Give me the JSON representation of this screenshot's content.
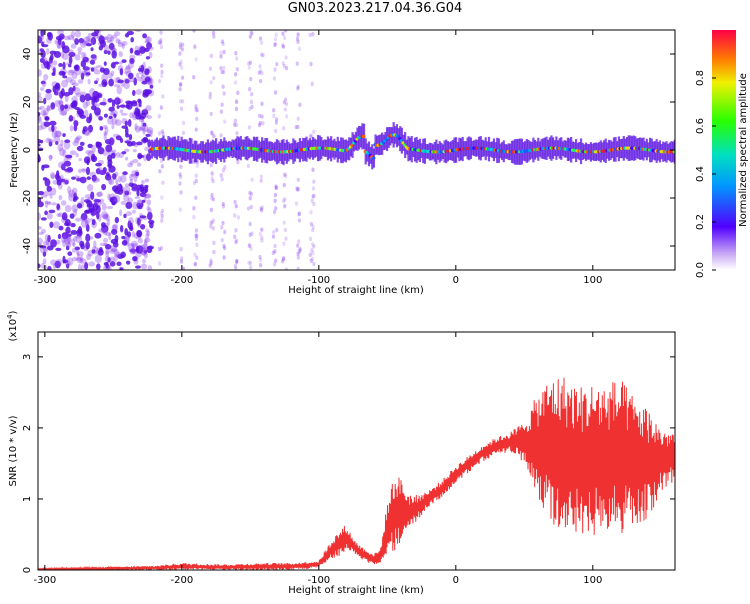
{
  "title": "GN03.2023.217.04.36.G04",
  "colors": {
    "snr_line": "#ef3131",
    "waterfall_sparse": "#8a3cf0",
    "waterfall_dense": "#5a10e0",
    "ridge_core": "#e0203c"
  },
  "chart_data": [
    {
      "type": "heatmap",
      "name": "spectrogram",
      "xlabel": "Height of straight line (km)",
      "ylabel": "Frequency (Hz)",
      "xlim": [
        -305,
        160
      ],
      "ylim": [
        -50,
        50
      ],
      "xticks": [
        -300,
        -200,
        -100,
        0,
        100
      ],
      "yticks": [
        -40,
        -20,
        0,
        20,
        40
      ],
      "colorbar": {
        "label": "Normalized spectral amplitude",
        "range": [
          0.0,
          1.0
        ],
        "ticks": [
          "0.0",
          "0.2",
          "0.4",
          "0.6",
          "0.8"
        ],
        "colormap": "rainbow"
      },
      "features": {
        "noise_region_x": [
          -305,
          -222
        ],
        "ridge_start_x": -222,
        "ridge_center_freq_hz": 0,
        "disturbance_x": [
          -80,
          -35
        ],
        "disturbance_peak_hz": 10
      }
    },
    {
      "type": "line",
      "name": "snr",
      "xlabel": "Height of straight line (km)",
      "ylabel": "SNR (10 * v/v)",
      "y_multiplier": "(x10",
      "y_multiplier_exp": "4",
      "xlim": [
        -305,
        160
      ],
      "ylim": [
        0,
        3.35
      ],
      "xticks": [
        -300,
        -200,
        -100,
        0,
        100
      ],
      "yticks": [
        0,
        1,
        2,
        3
      ],
      "series": [
        {
          "x": [
            -305,
            -260,
            -220,
            -200,
            -170,
            -140,
            -120,
            -100,
            -90,
            -80,
            -75,
            -70,
            -60,
            -55,
            -50,
            -45,
            -40,
            -35,
            -30,
            -20,
            -10,
            0,
            10,
            20,
            30,
            40,
            50,
            60,
            70,
            80,
            90,
            100,
            110,
            120,
            130,
            140,
            150,
            160
          ],
          "values": [
            0.01,
            0.02,
            0.03,
            0.05,
            0.04,
            0.05,
            0.05,
            0.08,
            0.3,
            0.45,
            0.35,
            0.25,
            0.15,
            0.2,
            0.6,
            0.8,
            0.85,
            0.8,
            0.85,
            1.0,
            1.15,
            1.35,
            1.5,
            1.65,
            1.75,
            1.8,
            1.8,
            1.75,
            1.7,
            1.6,
            1.55,
            1.55,
            1.55,
            1.6,
            1.55,
            1.5,
            1.55,
            1.6
          ],
          "amp": [
            0.01,
            0.02,
            0.03,
            0.05,
            0.04,
            0.05,
            0.05,
            0.05,
            0.15,
            0.2,
            0.1,
            0.1,
            0.08,
            0.1,
            0.35,
            0.55,
            0.45,
            0.3,
            0.2,
            0.12,
            0.12,
            0.12,
            0.12,
            0.12,
            0.12,
            0.15,
            0.3,
            0.75,
            1.05,
            1.15,
            1.05,
            1.1,
            1.1,
            1.1,
            0.9,
            0.8,
            0.45,
            0.35
          ]
        }
      ]
    }
  ]
}
